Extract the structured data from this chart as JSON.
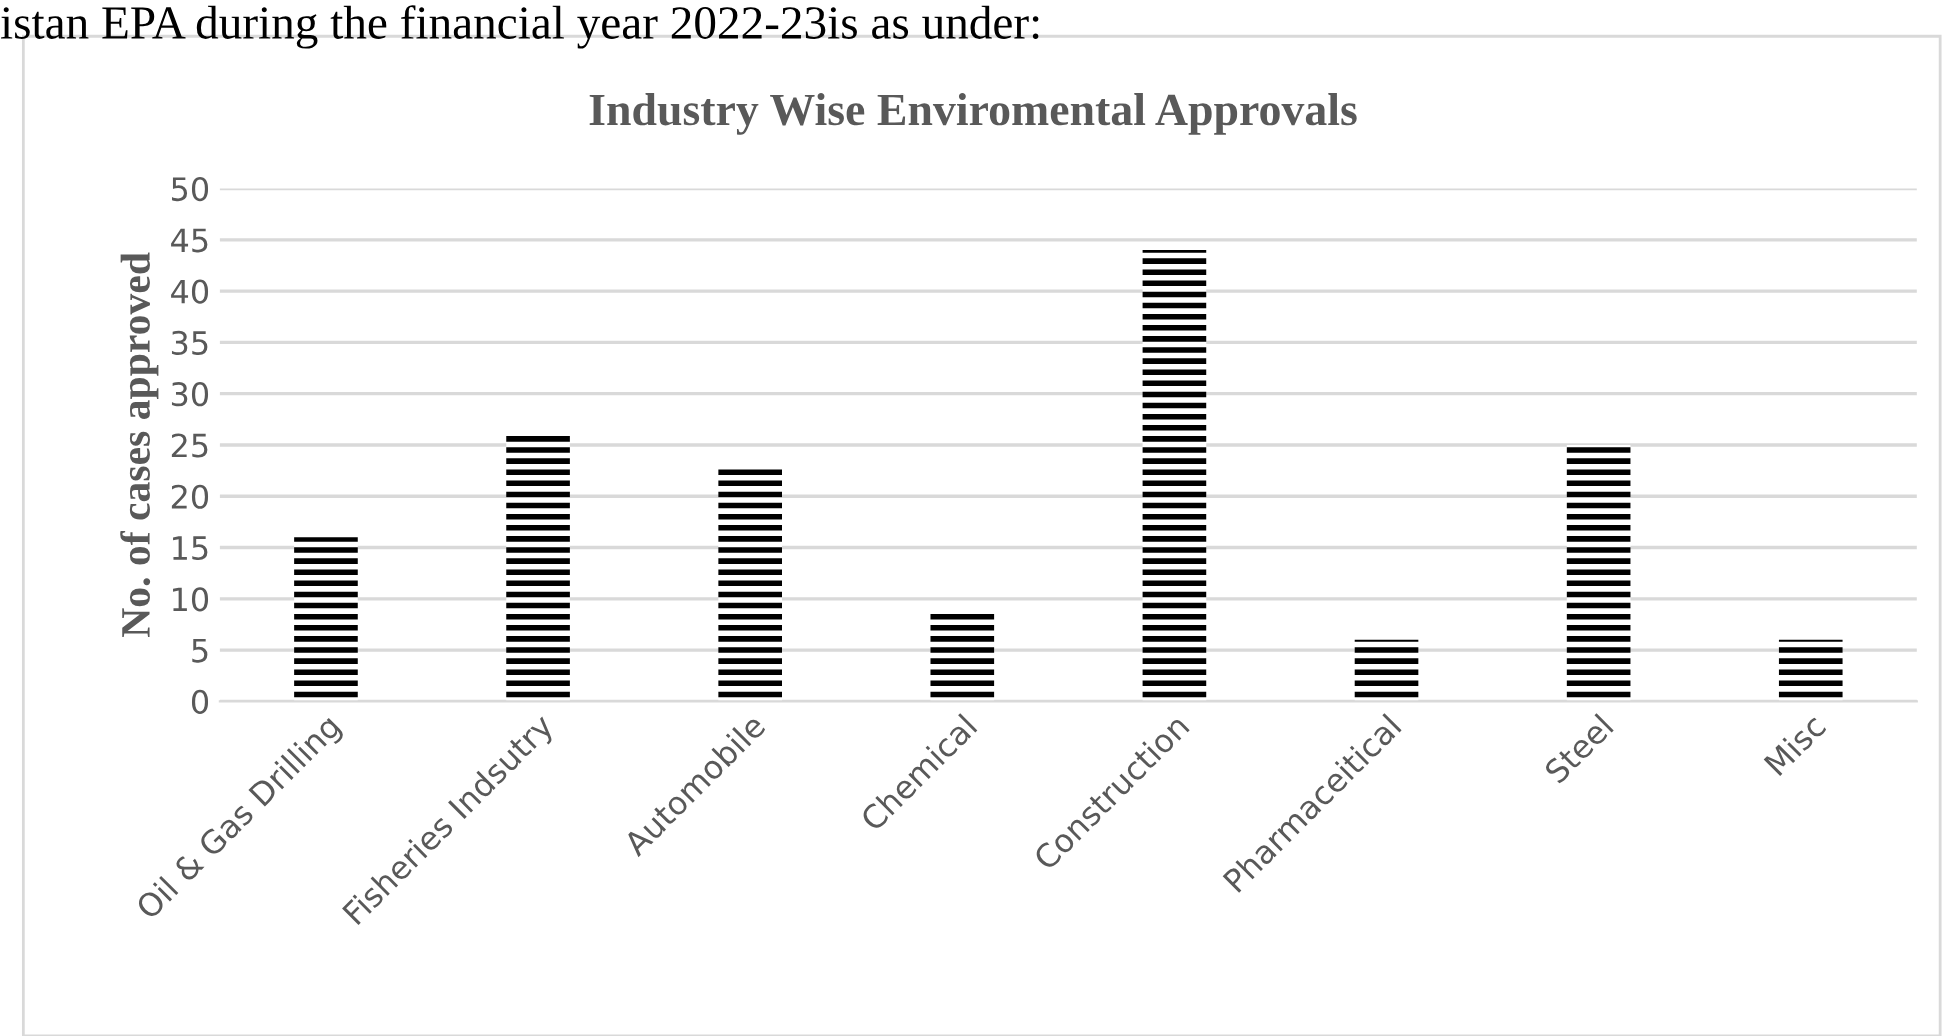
{
  "chart_data": {
    "type": "bar",
    "title": "Industry Wise Enviromental Approvals",
    "ylabel": "No. of cases approved",
    "categories": [
      "Oil & Gas Drilling",
      "Fisheries Indsutry",
      "Automobile",
      "Chemical",
      "Construction",
      "Pharmaceitical",
      "Steel",
      "Misc"
    ],
    "values": [
      16,
      26,
      23,
      9,
      44,
      6,
      25,
      6
    ],
    "color": "#000000",
    "ylim": [
      0,
      50
    ],
    "yticks": [
      0,
      5,
      10,
      15,
      20,
      25,
      30,
      35,
      40,
      45,
      50
    ],
    "grid": "y",
    "legend": false,
    "annotations": [
      "istan EPA during the financial year 2022-23is as under:"
    ]
  }
}
